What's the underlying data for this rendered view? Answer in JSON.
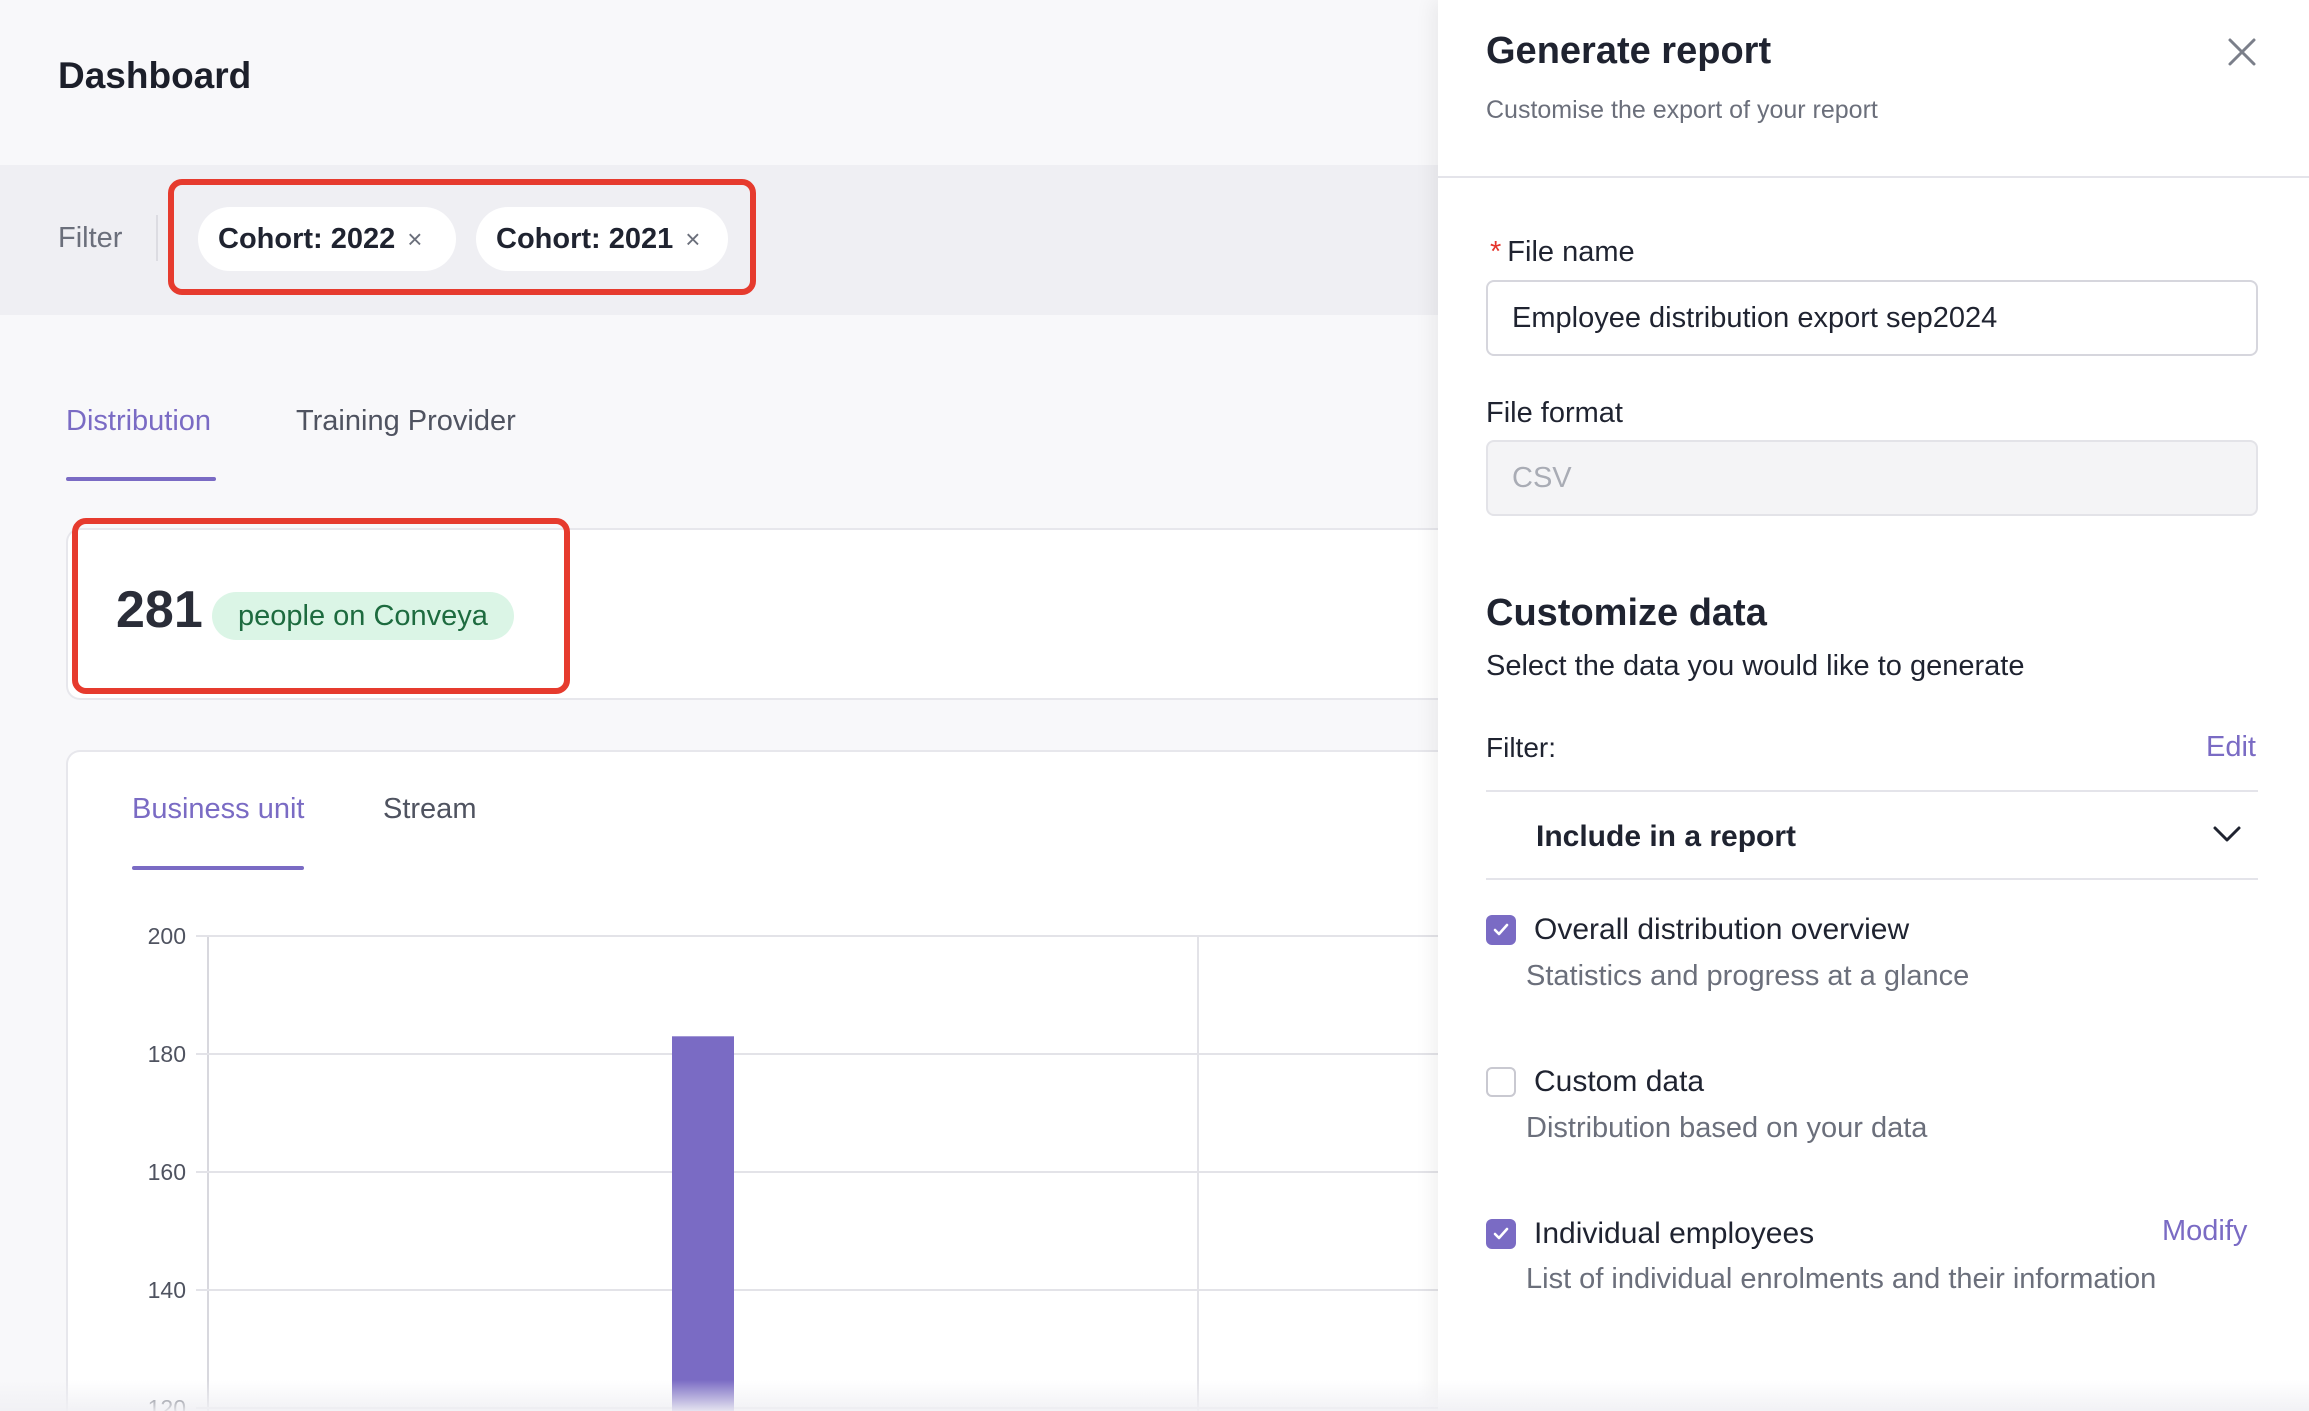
{
  "dashboard": {
    "title": "Dashboard",
    "filter": {
      "label": "Filter",
      "chips": [
        {
          "label": "Cohort: 2022",
          "remove": "×"
        },
        {
          "label": "Cohort: 2021",
          "remove": "×"
        }
      ]
    },
    "tabs": [
      {
        "label": "Distribution",
        "active": true
      },
      {
        "label": "Training Provider",
        "active": false
      }
    ],
    "kpi": {
      "value": "281",
      "badge": "people on Conveya"
    },
    "chart_tabs": [
      {
        "label": "Business unit",
        "active": true
      },
      {
        "label": "Stream",
        "active": false
      }
    ]
  },
  "chart_data": {
    "type": "bar",
    "yticks": [
      120,
      140,
      160,
      180,
      200
    ],
    "ylim": [
      120,
      200
    ],
    "bars": [
      183
    ],
    "bar_color": "#7a6bc4"
  },
  "drawer": {
    "title": "Generate report",
    "subtitle": "Customise the export of your report",
    "close_icon": "close-icon",
    "file_name": {
      "label": "File name",
      "required_mark": "*",
      "value": "Employee distribution export sep2024"
    },
    "file_format": {
      "label": "File format",
      "value": "CSV"
    },
    "customize": {
      "title": "Customize data",
      "subtitle": "Select the data you would like to generate",
      "filter_label": "Filter:",
      "edit_link": "Edit",
      "select_label": "Include in a report",
      "options": [
        {
          "title": "Overall distribution overview",
          "desc": "Statistics and progress at a glance",
          "checked": true
        },
        {
          "title": "Custom data",
          "desc": "Distribution based on your data",
          "checked": false
        },
        {
          "title": "Individual employees",
          "desc": "List of individual enrolments and their information",
          "checked": true,
          "action": "Modify"
        }
      ]
    }
  },
  "colors": {
    "accent": "#7a6bc4",
    "highlight": "#e63b2e",
    "badge_bg": "#dbf5e6",
    "badge_text": "#1d6b3f"
  }
}
